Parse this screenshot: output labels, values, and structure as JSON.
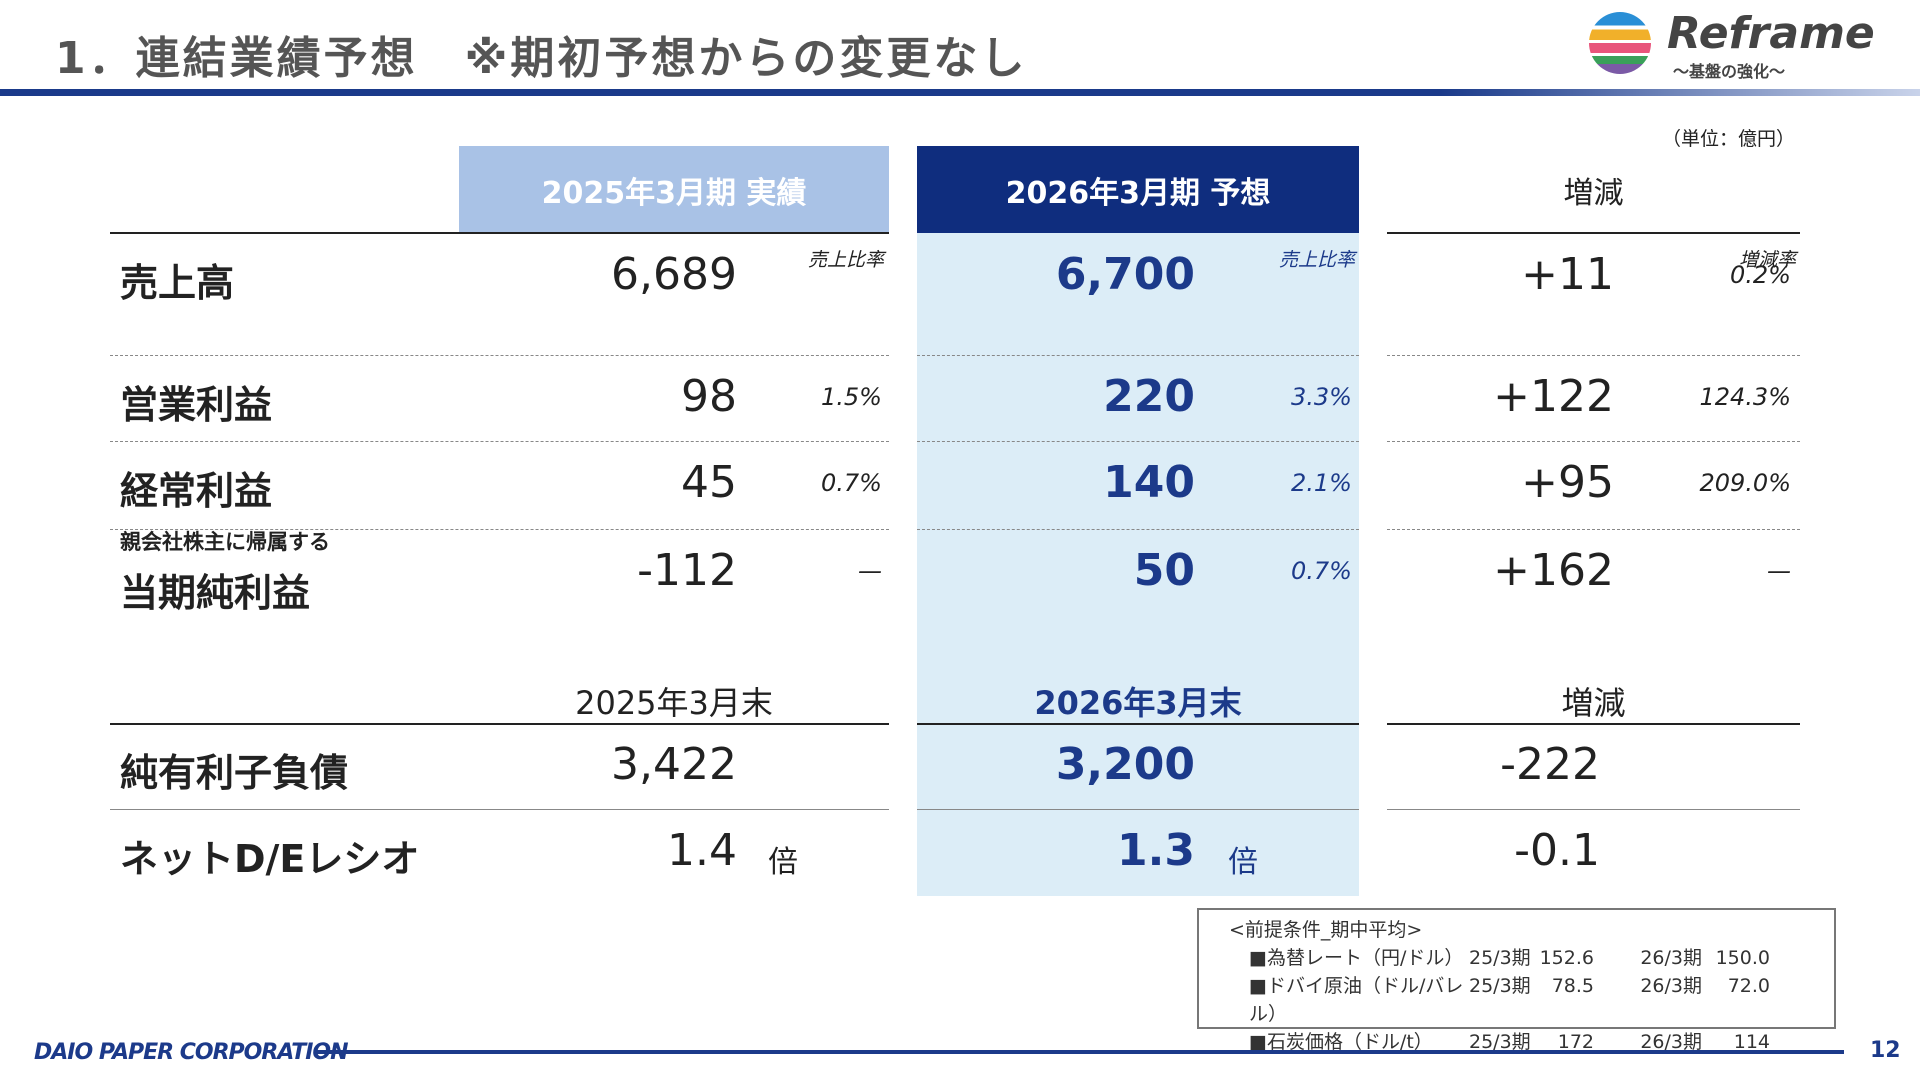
{
  "header": {
    "title": "1．連結業績予想　※期初予想からの変更なし",
    "logo_text": "Reframe",
    "logo_sub": "～基盤の強化～"
  },
  "unit": "（単位：億円）",
  "columns": {
    "actual": "2025年3月期  実績",
    "forecast": "2026年3月期  予想",
    "change": "増減",
    "ratio_label": "売上比率",
    "rate_label": "増減率"
  },
  "rows": [
    {
      "label": "売上高",
      "prefix": "",
      "actual": "6,689",
      "actual_ratio": "",
      "forecast": "6,700",
      "forecast_ratio": "",
      "change": "+11",
      "rate": "0.2%"
    },
    {
      "label": "営業利益",
      "prefix": "",
      "actual": "98",
      "actual_ratio": "1.5%",
      "forecast": "220",
      "forecast_ratio": "3.3%",
      "change": "+122",
      "rate": "124.3%"
    },
    {
      "label": "経常利益",
      "prefix": "",
      "actual": "45",
      "actual_ratio": "0.7%",
      "forecast": "140",
      "forecast_ratio": "2.1%",
      "change": "+95",
      "rate": "209.0%"
    },
    {
      "label": "当期純利益",
      "prefix": "親会社株主に帰属する",
      "actual": "-112",
      "actual_ratio": "—",
      "forecast": "50",
      "forecast_ratio": "0.7%",
      "change": "+162",
      "rate": "—"
    }
  ],
  "bs_columns": {
    "actual": "2025年3月末",
    "forecast": "2026年3月末",
    "change": "増減"
  },
  "bs_rows": [
    {
      "label": "純有利子負債",
      "actual": "3,422",
      "forecast": "3,200",
      "change": "-222",
      "unit": ""
    },
    {
      "label": "ネットD/Eレシオ",
      "actual": "1.4",
      "forecast": "1.3",
      "change": "-0.1",
      "unit": "倍"
    }
  ],
  "assumptions": {
    "title": "<前提条件_期中平均>",
    "items": [
      {
        "name": "■為替レート（円/ドル）",
        "p1": "25/3期",
        "v1": "152.6",
        "p2": "26/3期",
        "v2": "150.0"
      },
      {
        "name": "■ドバイ原油（ドル/バレル）",
        "p1": "25/3期",
        "v1": "78.5",
        "p2": "26/3期",
        "v2": "72.0"
      },
      {
        "name": "■石炭価格（ドル/t）",
        "p1": "25/3期",
        "v1": "172",
        "p2": "26/3期",
        "v2": "114"
      }
    ]
  },
  "footer": {
    "company": "DAIO PAPER CORPORATION",
    "page": "12"
  },
  "colors": {
    "navy": "#0f2d7e",
    "light_header": "#a9c2e6",
    "light_col": "#dcedf7"
  }
}
